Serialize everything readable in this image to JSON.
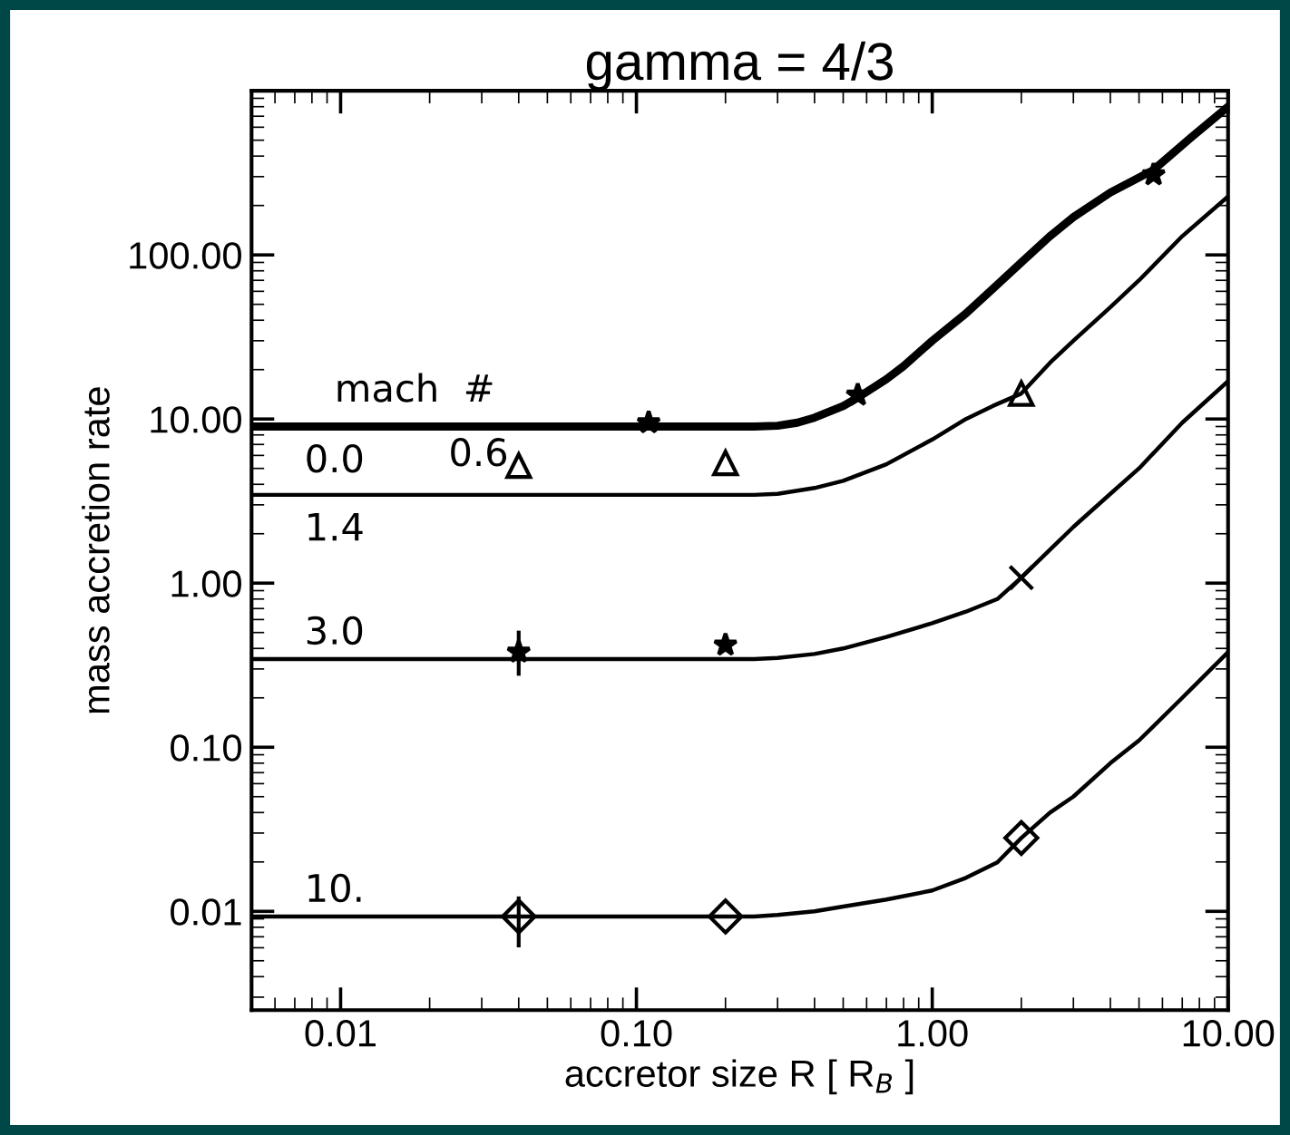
{
  "chart_data": {
    "type": "line",
    "title": "gamma = 4/3",
    "xlabel": "accretor size R [ R$_{B}$ ]",
    "ylabel": "mass accretion rate",
    "legend_title": "mach  #",
    "log": "xy",
    "grid": false,
    "legend": false,
    "xlim": [
      0.005,
      10
    ],
    "ylim": [
      0.0025,
      1000
    ],
    "xticks": [
      {
        "value": 0.01,
        "label": "0.01"
      },
      {
        "value": 0.1,
        "label": "0.10"
      },
      {
        "value": 1,
        "label": "1.00"
      },
      {
        "value": 10,
        "label": "10.00"
      }
    ],
    "yticks": [
      {
        "value": 0.01,
        "label": "0.01"
      },
      {
        "value": 0.1,
        "label": "0.10"
      },
      {
        "value": 1,
        "label": "1.00"
      },
      {
        "value": 10,
        "label": "10.00"
      },
      {
        "value": 100,
        "label": "100.00"
      }
    ],
    "series": [
      {
        "name": "0.0",
        "color": "#000000",
        "x": [
          0.005,
          0.25,
          0.3,
          0.35,
          0.4,
          0.5,
          0.56,
          0.7,
          0.8,
          1,
          1.3,
          1.6,
          2,
          2.5,
          3,
          4,
          5.6,
          7.5,
          10
        ],
        "values": [
          9,
          9,
          9.1,
          9.5,
          10.2,
          12,
          13.5,
          17.5,
          21,
          30,
          44,
          62,
          90,
          130,
          170,
          240,
          330,
          520,
          800
        ]
      },
      {
        "name": "1.4",
        "color": "#000000",
        "x": [
          0.005,
          0.25,
          0.3,
          0.4,
          0.5,
          0.7,
          1,
          1.3,
          1.6,
          2,
          2.5,
          3,
          4,
          5,
          7,
          10
        ],
        "values": [
          3.45,
          3.45,
          3.5,
          3.8,
          4.2,
          5.3,
          7.5,
          10,
          12,
          14.3,
          22,
          30,
          48,
          70,
          130,
          227
        ]
      },
      {
        "name": "3.0",
        "color": "#000000",
        "x": [
          0.005,
          0.25,
          0.3,
          0.4,
          0.5,
          0.7,
          1,
          1.3,
          1.66,
          2,
          2.5,
          3,
          4,
          5,
          7,
          10
        ],
        "values": [
          0.345,
          0.345,
          0.35,
          0.37,
          0.4,
          0.47,
          0.57,
          0.67,
          0.8,
          1.08,
          1.6,
          2.2,
          3.5,
          5,
          9.5,
          17
        ]
      },
      {
        "name": "10.",
        "color": "#000000",
        "x": [
          0.005,
          0.25,
          0.3,
          0.4,
          0.5,
          0.7,
          1,
          1.3,
          1.66,
          2,
          2.5,
          3,
          4,
          5,
          7,
          10
        ],
        "values": [
          0.0093,
          0.0093,
          0.0095,
          0.01,
          0.0107,
          0.0118,
          0.0134,
          0.016,
          0.0199,
          0.028,
          0.04,
          0.05,
          0.08,
          0.11,
          0.2,
          0.38
        ]
      },
      {
        "type": "scatter",
        "color": "#000000",
        "marker": "star",
        "x": [
          0.11,
          0.56,
          5.6
        ],
        "values": [
          9.5,
          14,
          308
        ]
      },
      {
        "type": "scatter",
        "name": "0.6",
        "color": "#000000",
        "marker": "triangle",
        "x": [
          0.04,
          0.2,
          2
        ],
        "values": [
          5.2,
          5.4,
          14.3
        ]
      },
      {
        "type": "scatter",
        "color": "#000000",
        "marker": "star",
        "x": [
          0.04,
          0.2
        ],
        "values": [
          0.38,
          0.42
        ],
        "errors": [
          [
            0.28,
            0.5
          ],
          null
        ]
      },
      {
        "type": "scatter",
        "color": "#000000",
        "marker": "cross",
        "x": [
          2
        ],
        "values": [
          1.08
        ]
      },
      {
        "type": "scatter",
        "color": "#000000",
        "marker": "diamond",
        "x": [
          0.04,
          0.2,
          2
        ],
        "values": [
          0.0093,
          0.0093,
          0.028
        ],
        "errors": [
          [
            0.0062,
            0.012
          ],
          null,
          null
        ]
      }
    ]
  }
}
